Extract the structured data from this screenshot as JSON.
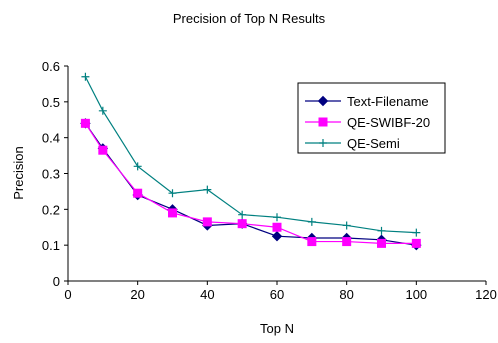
{
  "chart_data": {
    "type": "line",
    "title": "Precision of Top N Results",
    "xlabel": "Top N",
    "ylabel": "Precision",
    "xlim": [
      0,
      120
    ],
    "ylim": [
      0,
      0.6
    ],
    "xticks": [
      "0",
      "20",
      "40",
      "60",
      "80",
      "100",
      "120"
    ],
    "yticks": [
      "0",
      "0.1",
      "0.2",
      "0.3",
      "0.4",
      "0.5",
      "0.6"
    ],
    "grid": false,
    "legend_position": "top-right",
    "series": [
      {
        "name": "Text-Filename",
        "color": "#000080",
        "marker": "diamond",
        "x": [
          5,
          10,
          20,
          30,
          40,
          50,
          60,
          70,
          80,
          90,
          100
        ],
        "y": [
          0.44,
          0.37,
          0.24,
          0.2,
          0.155,
          0.16,
          0.125,
          0.12,
          0.12,
          0.115,
          0.1
        ]
      },
      {
        "name": "QE-SWIBF-20",
        "color": "#ff00ff",
        "marker": "square",
        "x": [
          5,
          10,
          20,
          30,
          40,
          50,
          60,
          70,
          80,
          90,
          100
        ],
        "y": [
          0.44,
          0.365,
          0.245,
          0.19,
          0.165,
          0.16,
          0.15,
          0.11,
          0.11,
          0.105,
          0.105
        ]
      },
      {
        "name": "QE-Semi",
        "color": "#008080",
        "marker": "plus",
        "x": [
          5,
          10,
          20,
          30,
          40,
          50,
          60,
          70,
          80,
          90,
          100
        ],
        "y": [
          0.57,
          0.475,
          0.32,
          0.245,
          0.255,
          0.185,
          0.178,
          0.165,
          0.155,
          0.14,
          0.135
        ]
      }
    ]
  }
}
